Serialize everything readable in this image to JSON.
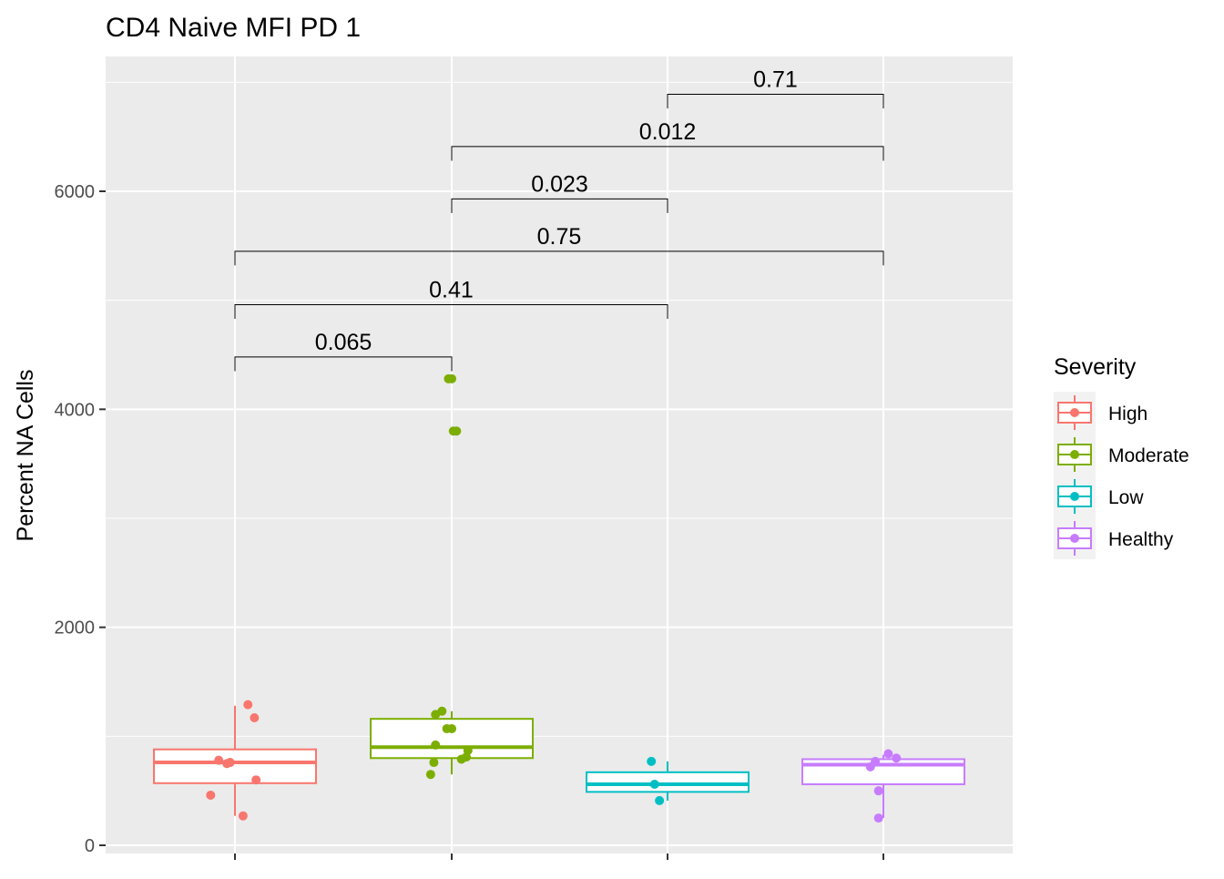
{
  "chart_data": {
    "type": "box",
    "title": "CD4 Naive MFI PD 1",
    "xlabel": "",
    "ylabel": "Percent NA Cells",
    "ylim": [
      -50,
      7000
    ],
    "yticks": [
      0,
      2000,
      4000,
      6000
    ],
    "ytick_labels": [
      "0",
      "2000",
      "4000",
      "6000"
    ],
    "grid": true,
    "legend": {
      "title": "Severity",
      "position": "right",
      "entries": [
        "High",
        "Moderate",
        "Low",
        "Healthy"
      ]
    },
    "categories": [
      "High",
      "Moderate",
      "Low",
      "Healthy"
    ],
    "colors": {
      "High": "#F8766D",
      "Moderate": "#7CAE00",
      "Low": "#00BFC4",
      "Healthy": "#C77CFF"
    },
    "boxes": [
      {
        "name": "High",
        "whisker_low": 270,
        "q1": 570,
        "median": 760,
        "q3": 880,
        "whisker_high": 1280
      },
      {
        "name": "Moderate",
        "whisker_low": 650,
        "q1": 800,
        "median": 900,
        "q3": 1160,
        "whisker_high": 1230
      },
      {
        "name": "Low",
        "whisker_low": 410,
        "q1": 490,
        "median": 560,
        "q3": 670,
        "whisker_high": 770
      },
      {
        "name": "Healthy",
        "whisker_low": 250,
        "q1": 560,
        "median": 740,
        "q3": 790,
        "whisker_high": 830
      }
    ],
    "points": [
      {
        "group": "High",
        "jitter": -0.1,
        "y": 780
      },
      {
        "group": "High",
        "jitter": -0.05,
        "y": 750
      },
      {
        "group": "High",
        "jitter": -0.03,
        "y": 760
      },
      {
        "group": "High",
        "jitter": -0.15,
        "y": 460
      },
      {
        "group": "High",
        "jitter": 0.05,
        "y": 270
      },
      {
        "group": "High",
        "jitter": 0.08,
        "y": 1290
      },
      {
        "group": "High",
        "jitter": 0.12,
        "y": 1170
      },
      {
        "group": "High",
        "jitter": 0.13,
        "y": 600
      },
      {
        "group": "Moderate",
        "jitter": -0.02,
        "y": 4280
      },
      {
        "group": "Moderate",
        "jitter": 0.0,
        "y": 4280
      },
      {
        "group": "Moderate",
        "jitter": 0.01,
        "y": 3800
      },
      {
        "group": "Moderate",
        "jitter": 0.03,
        "y": 3800
      },
      {
        "group": "Moderate",
        "jitter": -0.1,
        "y": 1200
      },
      {
        "group": "Moderate",
        "jitter": -0.06,
        "y": 1230
      },
      {
        "group": "Moderate",
        "jitter": -0.03,
        "y": 1070
      },
      {
        "group": "Moderate",
        "jitter": 0.0,
        "y": 1070
      },
      {
        "group": "Moderate",
        "jitter": -0.1,
        "y": 920
      },
      {
        "group": "Moderate",
        "jitter": 0.1,
        "y": 870
      },
      {
        "group": "Moderate",
        "jitter": 0.06,
        "y": 790
      },
      {
        "group": "Moderate",
        "jitter": 0.09,
        "y": 810
      },
      {
        "group": "Moderate",
        "jitter": -0.11,
        "y": 760
      },
      {
        "group": "Moderate",
        "jitter": -0.13,
        "y": 650
      },
      {
        "group": "Low",
        "jitter": -0.1,
        "y": 770
      },
      {
        "group": "Low",
        "jitter": -0.08,
        "y": 560
      },
      {
        "group": "Low",
        "jitter": -0.05,
        "y": 410
      },
      {
        "group": "Healthy",
        "jitter": -0.08,
        "y": 720
      },
      {
        "group": "Healthy",
        "jitter": -0.05,
        "y": 770
      },
      {
        "group": "Healthy",
        "jitter": 0.03,
        "y": 840
      },
      {
        "group": "Healthy",
        "jitter": 0.08,
        "y": 800
      },
      {
        "group": "Healthy",
        "jitter": -0.03,
        "y": 500
      },
      {
        "group": "Healthy",
        "jitter": -0.03,
        "y": 250
      }
    ],
    "comparisons": [
      {
        "from": "High",
        "to": "Moderate",
        "label": "0.065",
        "y": 4480
      },
      {
        "from": "High",
        "to": "Low",
        "label": "0.41",
        "y": 4960
      },
      {
        "from": "High",
        "to": "Healthy",
        "label": "0.75",
        "y": 5450
      },
      {
        "from": "Moderate",
        "to": "Low",
        "label": "0.023",
        "y": 5930
      },
      {
        "from": "Moderate",
        "to": "Healthy",
        "label": "0.012",
        "y": 6410
      },
      {
        "from": "Low",
        "to": "Healthy",
        "label": "0.71",
        "y": 6890
      }
    ],
    "comparison_tick_length": 130
  }
}
